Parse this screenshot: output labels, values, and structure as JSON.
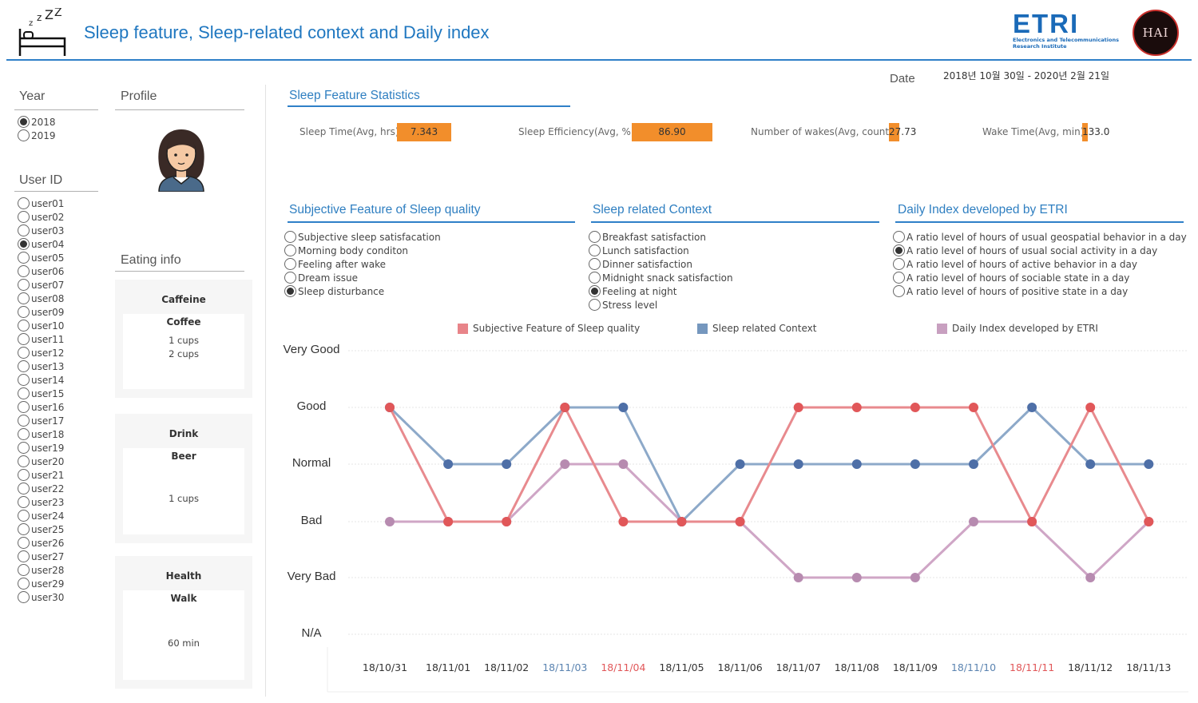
{
  "header": {
    "title": "Sleep feature, Sleep-related context and Daily index",
    "etri_logo_text": "ETRI",
    "etri_sub1": "Electronics and Telecommunications",
    "etri_sub2": "Research Institute",
    "lab_logo_text": "HAI"
  },
  "date": {
    "label": "Date",
    "range": "2018년 10월 30일 - 2020년 2월 21일"
  },
  "year": {
    "label": "Year",
    "options": [
      "2018",
      "2019"
    ],
    "selected": 0
  },
  "user": {
    "label": "User ID",
    "options": [
      "user01",
      "user02",
      "user03",
      "user04",
      "user05",
      "user06",
      "user07",
      "user08",
      "user09",
      "user10",
      "user11",
      "user12",
      "user13",
      "user14",
      "user15",
      "user16",
      "user17",
      "user18",
      "user19",
      "user20",
      "user21",
      "user22",
      "user23",
      "user24",
      "user25",
      "user26",
      "user27",
      "user28",
      "user29",
      "user30"
    ],
    "selected": 3
  },
  "profile": {
    "label": "Profile"
  },
  "eating": {
    "label": "Eating info",
    "cards": [
      {
        "title": "Caffeine",
        "item": "Coffee",
        "values": [
          "1 cups",
          "2 cups"
        ]
      },
      {
        "title": "Drink",
        "item": "Beer",
        "values": [
          "1 cups"
        ]
      },
      {
        "title": "Health",
        "item": "Walk",
        "values": [
          "60 min"
        ]
      }
    ]
  },
  "stats": {
    "title": "Sleep Feature Statistics",
    "items": [
      {
        "label": "Sleep Time(Avg, hrs)",
        "value": "7.343",
        "fill": 1.0
      },
      {
        "label": "Sleep Efficiency(Avg, %)",
        "value": "86.90",
        "fill": 1.0
      },
      {
        "label": "Number of wakes(Avg, count)",
        "value": "27.73",
        "fill": 0.12
      },
      {
        "label": "Wake Time(Avg, min)",
        "value": "133.0",
        "fill": 0.07
      }
    ]
  },
  "subjective": {
    "title": "Subjective Feature of Sleep quality",
    "options": [
      "Subjective sleep satisfacation",
      "Morning body conditon",
      "Feeling after wake",
      "Dream issue",
      "Sleep disturbance"
    ],
    "selected": 4
  },
  "context": {
    "title": "Sleep related Context",
    "options": [
      "Breakfast satisfaction",
      "Lunch satisfaction",
      "Dinner satisfaction",
      "Midnight snack satisfaction",
      "Feeling at night",
      "Stress level"
    ],
    "selected": 4
  },
  "daily": {
    "title": "Daily Index developed by ETRI",
    "options": [
      "A ratio level of hours of usual geospatial behavior in a day",
      "A ratio level of hours of usual social activity in a day",
      "A ratio level of hours of active behavior in a day",
      "A ratio level of hours of sociable state in a day",
      "A ratio level of hours of positive state in a day"
    ],
    "selected": 1
  },
  "colors": {
    "accent": "#2f80c8",
    "bar": "#f28e2b",
    "subjective": "#e15759",
    "context": "#4e79a7",
    "daily": "#b07aa1"
  },
  "chart_data": {
    "type": "line",
    "categories": [
      "18/10/31",
      "18/11/01",
      "18/11/02",
      "18/11/03",
      "18/11/04",
      "18/11/05",
      "18/11/06",
      "18/11/07",
      "18/11/08",
      "18/11/09",
      "18/11/10",
      "18/11/11",
      "18/11/12",
      "18/11/13"
    ],
    "category_colors": [
      "#333333",
      "#333333",
      "#333333",
      "#5b84b1",
      "#e15759",
      "#333333",
      "#333333",
      "#333333",
      "#333333",
      "#333333",
      "#5b84b1",
      "#e15759",
      "#333333",
      "#333333"
    ],
    "levels": [
      "N/A",
      "Very Bad",
      "Bad",
      "Normal",
      "Good",
      "Very Good"
    ],
    "series": [
      {
        "name": "Subjective Feature of Sleep quality",
        "color": "#e15759",
        "values": [
          4,
          2,
          2,
          4,
          2,
          2,
          2,
          4,
          4,
          4,
          4,
          2,
          4,
          2
        ]
      },
      {
        "name": "Sleep related Context",
        "color": "#4e79a7",
        "values": [
          4,
          3,
          3,
          4,
          4,
          2,
          3,
          3,
          3,
          3,
          3,
          4,
          3,
          3
        ]
      },
      {
        "name": "Daily Index developed by ETRI",
        "color": "#b07aa1",
        "values": [
          2,
          2,
          2,
          3,
          3,
          2,
          2,
          1,
          1,
          1,
          2,
          2,
          1,
          2
        ]
      }
    ]
  }
}
